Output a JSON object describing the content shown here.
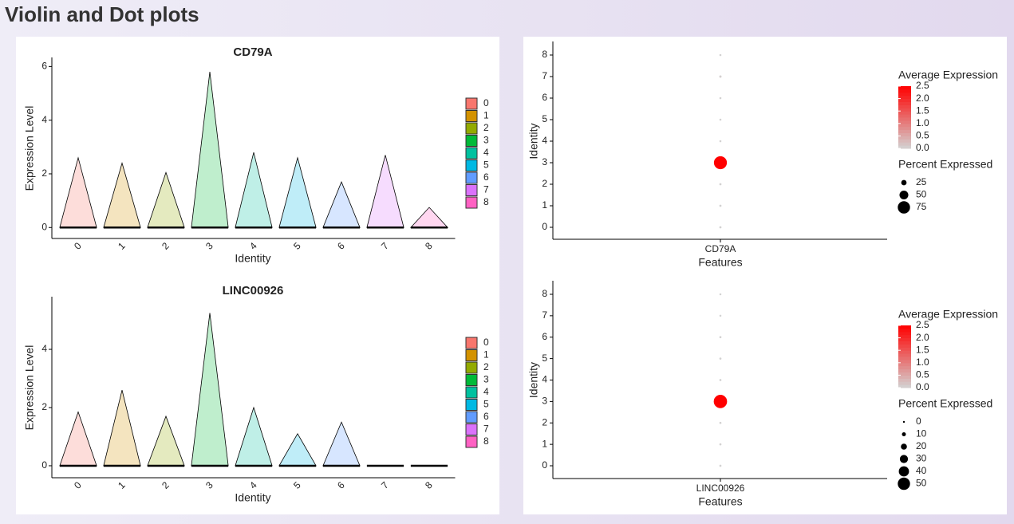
{
  "title": "Violin and Dot plots",
  "chart_data": [
    {
      "type": "violin",
      "title": "CD79A",
      "xlabel": "Identity",
      "ylabel": "Expression Level",
      "categories": [
        "0",
        "1",
        "2",
        "3",
        "4",
        "5",
        "6",
        "7",
        "8"
      ],
      "values": [
        2.6,
        2.4,
        2.05,
        5.8,
        2.8,
        2.6,
        1.7,
        2.7,
        0.75
      ],
      "colors": [
        "#f8766d",
        "#d39200",
        "#93aa00",
        "#00ba38",
        "#00c19f",
        "#00b9e3",
        "#619cff",
        "#db72fb",
        "#ff61c3"
      ],
      "ylim": [
        -0.2,
        6.1
      ],
      "yticks": [
        0,
        2,
        4,
        6
      ]
    },
    {
      "type": "violin",
      "title": "LINC00926",
      "xlabel": "Identity",
      "ylabel": "Expression Level",
      "categories": [
        "0",
        "1",
        "2",
        "3",
        "4",
        "5",
        "6",
        "7",
        "8"
      ],
      "values": [
        1.85,
        2.6,
        1.7,
        5.25,
        2.0,
        1.1,
        1.5,
        0,
        0
      ],
      "colors": [
        "#f8766d",
        "#d39200",
        "#93aa00",
        "#00ba38",
        "#00c19f",
        "#00b9e3",
        "#619cff",
        "#db72fb",
        "#ff61c3"
      ],
      "ylim": [
        -0.22,
        5.59
      ],
      "yticks": [
        0,
        2,
        4
      ]
    },
    {
      "type": "dot",
      "feature": "CD79A",
      "xlabel": "Features",
      "ylabel": "Identity",
      "categories": [
        "0",
        "1",
        "2",
        "3",
        "4",
        "5",
        "6",
        "7",
        "8"
      ],
      "values": [
        0.02,
        0.02,
        0.02,
        2.5,
        0.01,
        0.01,
        0.01,
        0.03,
        0.01
      ],
      "percent": [
        2,
        2,
        2,
        80,
        1,
        1,
        1,
        3,
        1
      ],
      "colors": [
        "#d3d3d3",
        "#ff0000"
      ],
      "colorlim": [
        0,
        2.5
      ],
      "color_legend_title": "Average Expression",
      "color_ticks": [
        {
          "value": 0,
          "label": "0.0"
        },
        {
          "value": 0.5,
          "label": "0.5"
        },
        {
          "value": 1,
          "label": "1.0"
        },
        {
          "value": 1.5,
          "label": "1.5"
        },
        {
          "value": 2,
          "label": "2.0"
        },
        {
          "value": 2.5,
          "label": "2.5"
        }
      ],
      "size_legend_title": "Percent Expressed",
      "size_ticks": [
        25,
        50,
        75
      ]
    },
    {
      "type": "dot",
      "feature": "LINC00926",
      "xlabel": "Features",
      "ylabel": "Identity",
      "categories": [
        "0",
        "1",
        "2",
        "3",
        "4",
        "5",
        "6",
        "7",
        "8"
      ],
      "values": [
        0.01,
        0.01,
        0.01,
        2.5,
        0.01,
        0.01,
        0.01,
        0,
        0
      ],
      "percent": [
        1,
        1,
        1,
        55,
        1,
        1,
        1,
        0.5,
        0.5
      ],
      "colors": [
        "#d3d3d3",
        "#ff0000"
      ],
      "colorlim": [
        0,
        2.5
      ],
      "color_legend_title": "Average Expression",
      "color_ticks": [
        {
          "value": 0,
          "label": "0.0"
        },
        {
          "value": 0.5,
          "label": "0.5"
        },
        {
          "value": 1,
          "label": "1.0"
        },
        {
          "value": 1.5,
          "label": "1.5"
        },
        {
          "value": 2,
          "label": "2.0"
        },
        {
          "value": 2.5,
          "label": "2.5"
        }
      ],
      "size_legend_title": "Percent Expressed",
      "size_ticks": [
        0,
        10,
        20,
        30,
        40,
        50
      ]
    }
  ]
}
